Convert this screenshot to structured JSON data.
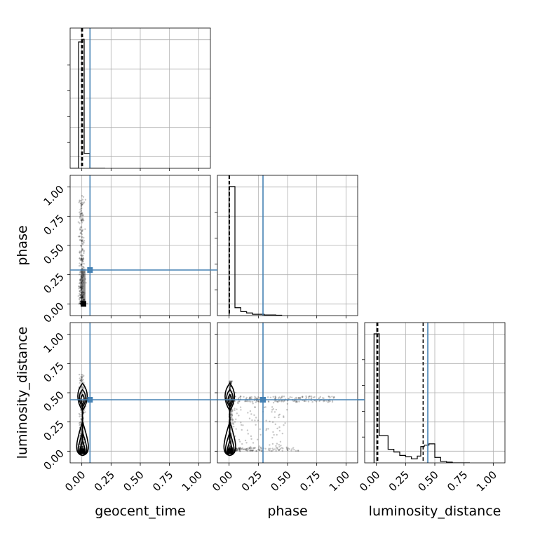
{
  "chart_data": {
    "type": "corner",
    "parameters": [
      "geocent_time",
      "phase",
      "luminosity_distance"
    ],
    "axis_range": [
      -0.1,
      1.1
    ],
    "ticks": [
      0.0,
      0.25,
      0.5,
      0.75,
      1.0
    ],
    "tick_labels": [
      "0.00",
      "0.25",
      "0.50",
      "0.75",
      "1.00"
    ],
    "grid": true,
    "truths": {
      "color": "#4682b4",
      "geocent_time": 0.07,
      "phase": 0.29,
      "luminosity_distance": 0.44
    },
    "quantiles": {
      "geocent_time": [
        -0.002,
        0.002,
        0.006
      ],
      "phase": [
        0.0,
        0.0,
        0.003
      ],
      "luminosity_distance": [
        0.005,
        0.012,
        0.4
      ]
    },
    "histograms": {
      "geocent_time": {
        "edges": [
          -0.1,
          -0.088,
          -0.076,
          -0.064,
          -0.052,
          -0.04,
          -0.028,
          -0.016,
          -0.004,
          0.008,
          0.02,
          0.032,
          0.044,
          0.056,
          0.068,
          0.08,
          0.092,
          0.104,
          0.116,
          0.128,
          0.14,
          0.152,
          0.164,
          0.176,
          0.188,
          0.2
        ],
        "counts": [
          0,
          0,
          0,
          0,
          0,
          0,
          0.93,
          0.93,
          0.93,
          0.95,
          0.11,
          0.11,
          0.11,
          0.11,
          0.0,
          0.0,
          0,
          0,
          0,
          0,
          0,
          0,
          0,
          0,
          0
        ]
      },
      "phase": {
        "edges": [
          0.0,
          0.05,
          0.1,
          0.15,
          0.2,
          0.25,
          0.3,
          0.35,
          0.4,
          0.45
        ],
        "counts": [
          0.98,
          0.06,
          0.03,
          0.02,
          0.01,
          0.01,
          0.005,
          0.005,
          0.003
        ]
      },
      "luminosity_distance": {
        "edges": [
          -0.02,
          0.0,
          0.025,
          0.05,
          0.1,
          0.15,
          0.2,
          0.25,
          0.3,
          0.35,
          0.38,
          0.41,
          0.45,
          0.5,
          0.55,
          0.6,
          0.65,
          0.7,
          0.75,
          0.8
        ],
        "counts": [
          0.95,
          0.95,
          0.2,
          0.2,
          0.1,
          0.08,
          0.055,
          0.045,
          0.03,
          0.05,
          0.12,
          0.13,
          0.14,
          0.04,
          0.01,
          0.005,
          0.0,
          0.0,
          0.0
        ]
      }
    },
    "scatter": {
      "phase_vs_geocent_time": {
        "x_center": 0.0,
        "x_spread": 0.012,
        "y_max": 0.93,
        "n_points": 350
      },
      "luminosity_distance_vs_geocent_time": {
        "x_center": 0.0,
        "x_spread": 0.012,
        "y_max": 0.66,
        "n_points": 350
      },
      "luminosity_distance_vs_phase": {
        "x_max": 0.9,
        "y_band": [
          0.42,
          0.47
        ],
        "y_floor": 0.0,
        "n_points": 700
      }
    },
    "contour_shape": {
      "luminosity_distance_lower_cluster": [
        0.0,
        0.1
      ],
      "luminosity_distance_upper_cluster": [
        0.43,
        0.47
      ]
    }
  }
}
